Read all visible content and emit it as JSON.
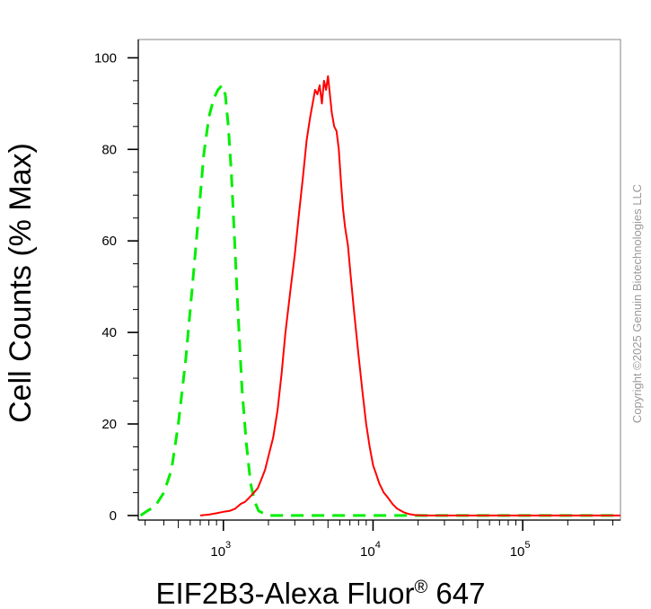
{
  "chart_data": {
    "type": "line",
    "title": "",
    "xlabel": "EIF2B3-Alexa Fluor",
    "xlabel_superscript": "®",
    "xlabel_suffix": " 647",
    "ylabel": "Cell Counts (% Max)",
    "x_scale": "log",
    "xlim": [
      270,
      450000
    ],
    "ylim": [
      -1,
      104
    ],
    "y_ticks": [
      0,
      20,
      40,
      60,
      80,
      100
    ],
    "x_ticks": [
      {
        "value": 1000,
        "base": "10",
        "exp": "3"
      },
      {
        "value": 10000,
        "base": "10",
        "exp": "4"
      },
      {
        "value": 100000,
        "base": "10",
        "exp": "5"
      }
    ],
    "grid": false,
    "legend": "none",
    "series": [
      {
        "color": "#00ee00",
        "style": "dashed",
        "x": [
          280,
          310,
          350,
          400,
          450,
          500,
          560,
          620,
          680,
          740,
          800,
          860,
          920,
          980,
          1030,
          1080,
          1130,
          1180,
          1250,
          1330,
          1420,
          1520,
          1620,
          1720,
          1850,
          2000,
          2500,
          5000,
          20000,
          450000
        ],
        "y": [
          0,
          1,
          2,
          5,
          10,
          20,
          34,
          50,
          65,
          79,
          87,
          91,
          93,
          94,
          92,
          85,
          75,
          62,
          45,
          28,
          16,
          7,
          3,
          1,
          0.5,
          0,
          0,
          0,
          0,
          0
        ]
      },
      {
        "color": "#ff0000",
        "style": "solid",
        "x": [
          700,
          800,
          900,
          1000,
          1100,
          1200,
          1300,
          1400,
          1500,
          1600,
          1700,
          1800,
          1900,
          2000,
          2150,
          2300,
          2450,
          2600,
          2800,
          3000,
          3200,
          3400,
          3600,
          3800,
          4000,
          4100,
          4250,
          4400,
          4550,
          4700,
          4850,
          5000,
          5150,
          5300,
          5500,
          5700,
          5900,
          6100,
          6300,
          6500,
          6800,
          7100,
          7500,
          8000,
          8500,
          9000,
          9500,
          10000,
          10500,
          11000,
          11800,
          12500,
          13500,
          14500,
          16000,
          17500,
          19000,
          22000,
          30000,
          60000,
          150000,
          450000
        ],
        "y": [
          0,
          0.2,
          0.5,
          0.8,
          1,
          1.5,
          2.5,
          3,
          4,
          5,
          6,
          8,
          10,
          13,
          17,
          23,
          31,
          40,
          49,
          57,
          66,
          74,
          82,
          87,
          91,
          93,
          92,
          94,
          90,
          95,
          93,
          96,
          92,
          88,
          85,
          84,
          80,
          73,
          67,
          63,
          59,
          52,
          44,
          35,
          27,
          20,
          15,
          11,
          9,
          7,
          5,
          4,
          2.5,
          1.5,
          0.7,
          0.3,
          0.1,
          0,
          0,
          0,
          0,
          0
        ]
      }
    ]
  },
  "watermark": "Copyright ©2025 Genuin Biotechnologies LLC"
}
